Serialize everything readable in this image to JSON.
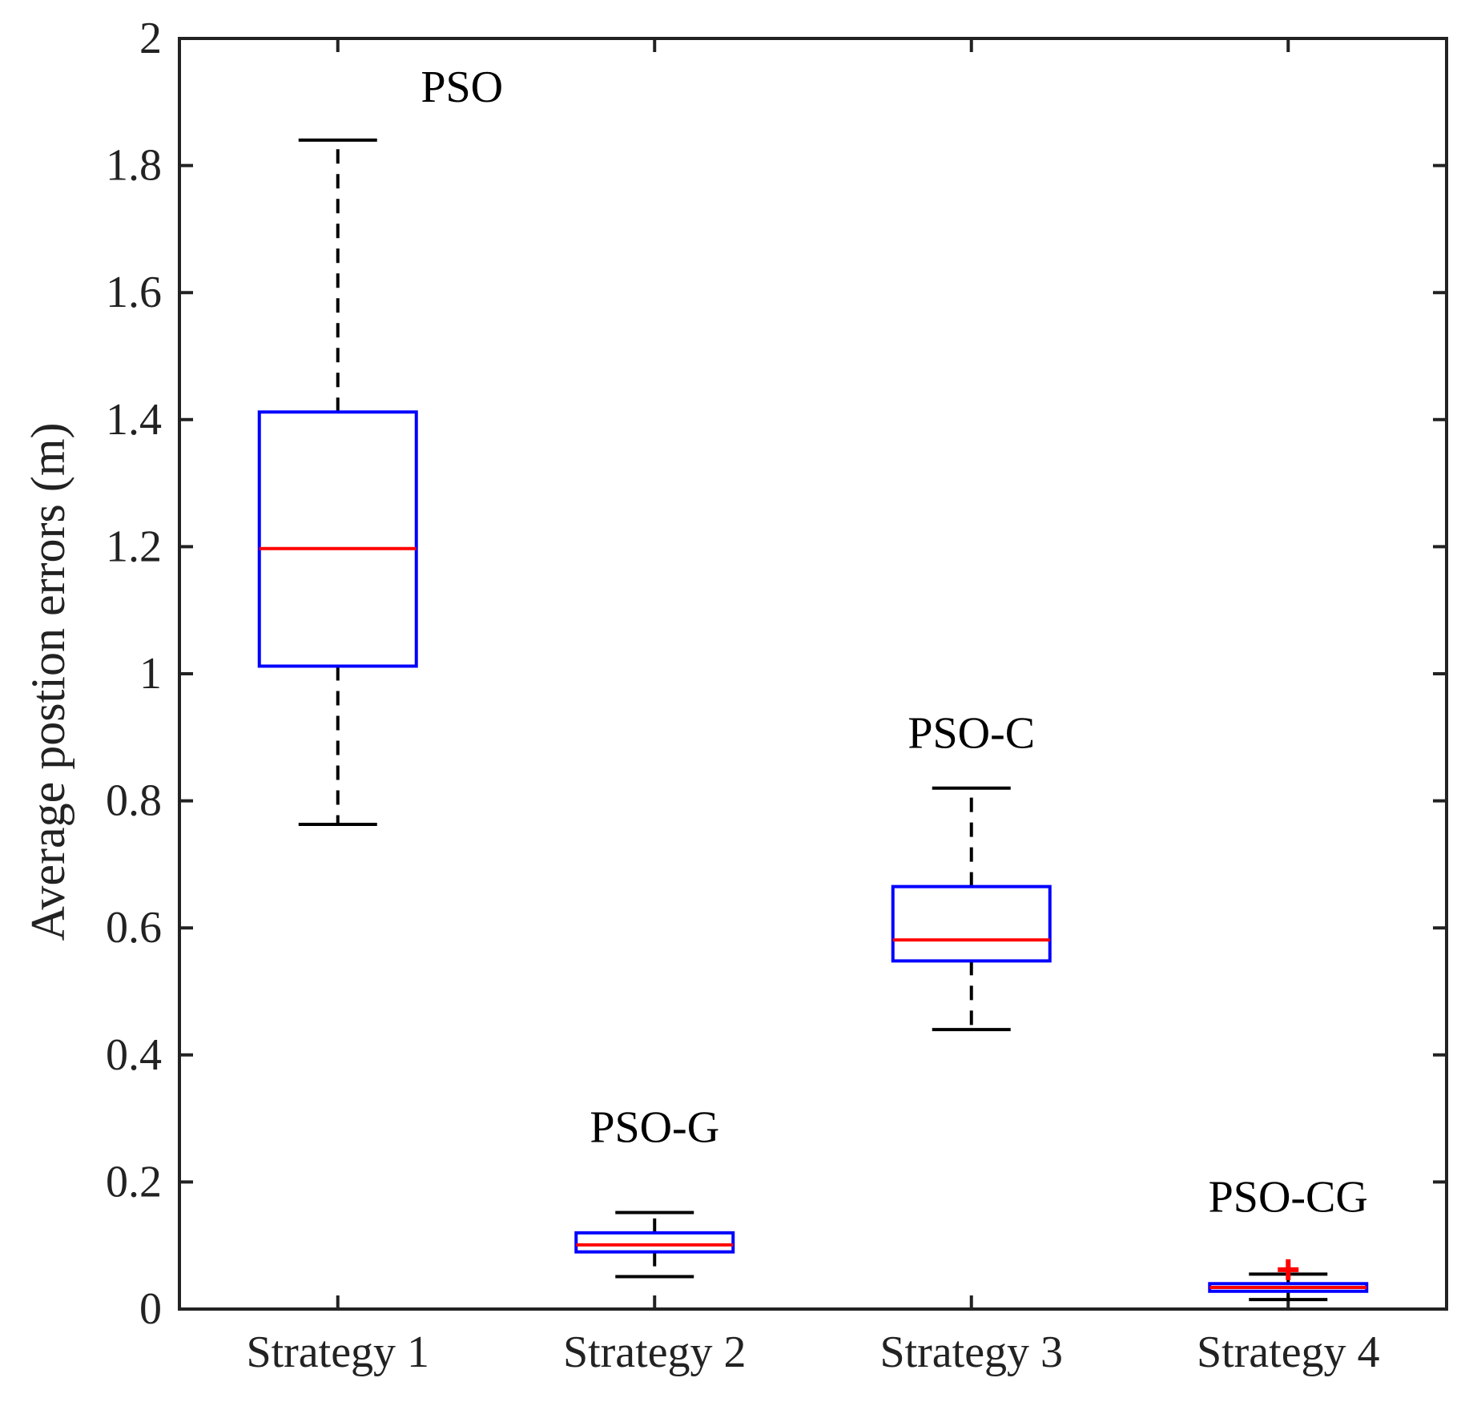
{
  "chart_data": {
    "type": "boxplot",
    "title": "",
    "xlabel": "",
    "ylabel": "Average postion errors (m)",
    "ylim": [
      0,
      2
    ],
    "yticks": [
      "0",
      "0.2",
      "0.4",
      "0.6",
      "0.8",
      "1",
      "1.2",
      "1.4",
      "1.6",
      "1.8",
      "2"
    ],
    "categories": [
      "Strategy 1",
      "Strategy 2",
      "Strategy 3",
      "Strategy 4"
    ],
    "series": [
      {
        "category": "Strategy 1",
        "label": "PSO",
        "whisker_low": 0.763,
        "q1": 1.012,
        "median": 1.197,
        "q3": 1.412,
        "whisker_high": 1.84,
        "outliers": []
      },
      {
        "category": "Strategy 2",
        "label": "PSO-G",
        "whisker_low": 0.051,
        "q1": 0.09,
        "median": 0.101,
        "q3": 0.12,
        "whisker_high": 0.152,
        "outliers": []
      },
      {
        "category": "Strategy 3",
        "label": "PSO-C",
        "whisker_low": 0.44,
        "q1": 0.548,
        "median": 0.581,
        "q3": 0.665,
        "whisker_high": 0.82,
        "outliers": []
      },
      {
        "category": "Strategy 4",
        "label": "PSO-CG",
        "whisker_low": 0.015,
        "q1": 0.028,
        "median": 0.034,
        "q3": 0.04,
        "whisker_high": 0.055,
        "outliers": [
          0.062
        ]
      }
    ],
    "colors": {
      "box": "#0000ff",
      "median": "#ff0000",
      "whisker": "#000000",
      "outlier": "#ff0000",
      "axis": "#222222"
    }
  }
}
